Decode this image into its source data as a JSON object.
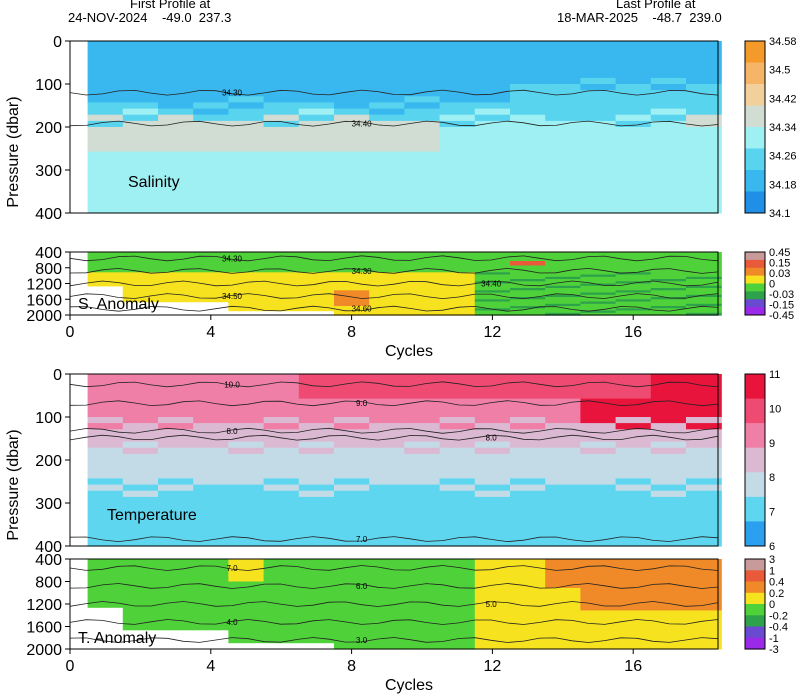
{
  "header": {
    "first_label": "First Profile at",
    "first_value": "24-NOV-2024    -49.0  237.3",
    "last_label": "Last Profile at",
    "last_value": "18-MAR-2025    -48.7  239.0"
  },
  "chart_data": [
    {
      "type": "heatmap",
      "title": "Salinity",
      "ylabel": "Pressure (dbar)",
      "ylim": [
        400,
        0
      ],
      "yticks": [
        "0",
        "100",
        "200",
        "300",
        "400"
      ],
      "xlim": [
        0,
        18.5
      ],
      "colorbar": [
        "34.58",
        "34.5",
        "34.42",
        "34.34",
        "34.26",
        "34.18",
        "34.1"
      ],
      "colors": [
        "#f49a2a",
        "#f6b466",
        "#f3cf9c",
        "#d1ddd2",
        "#9ff0f3",
        "#58d4ef",
        "#38b8ee",
        "#1f8fe8"
      ],
      "contours": [
        {
          "label": "34.30",
          "value": 34.3
        },
        {
          "label": "34.40",
          "value": 34.4
        }
      ]
    },
    {
      "type": "heatmap",
      "title": "S. Anomaly",
      "ylim": [
        2000,
        400
      ],
      "yticks": [
        "400",
        "800",
        "1200",
        "1600",
        "2000"
      ],
      "xlabel": "Cycles",
      "xticks": [
        "0",
        "4",
        "8",
        "12",
        "16"
      ],
      "colorbar": [
        "0.45",
        "0.15",
        "0.03",
        "0",
        "-0.03",
        "-0.15",
        "-0.45"
      ],
      "colors": [
        "#c89a9a",
        "#e85a3a",
        "#f08a28",
        "#f7e21f",
        "#4fd13a",
        "#2ea24a",
        "#6a4ad0",
        "#9a2ae8"
      ],
      "contours": [
        {
          "label": "34.30",
          "value": 34.3
        },
        {
          "label": "34.30",
          "value": 34.3
        },
        {
          "label": "34.40",
          "value": 34.4
        },
        {
          "label": "34.50",
          "value": 34.5
        },
        {
          "label": "34.60",
          "value": 34.6
        }
      ]
    },
    {
      "type": "heatmap",
      "title": "Temperature",
      "ylabel": "Pressure (dbar)",
      "ylim": [
        400,
        0
      ],
      "yticks": [
        "0",
        "100",
        "200",
        "300",
        "400"
      ],
      "xlim": [
        0,
        18.5
      ],
      "colorbar": [
        "11",
        "10",
        "9",
        "8",
        "7",
        "6"
      ],
      "colors": [
        "#e8143c",
        "#ef4a72",
        "#f07fa8",
        "#dcb9d2",
        "#c2dbe6",
        "#5fd6f0",
        "#2aa0ee"
      ],
      "contours": [
        {
          "label": "10.0",
          "value": 10.0
        },
        {
          "label": "9.0",
          "value": 9.0
        },
        {
          "label": "8.0",
          "value": 8.0
        },
        {
          "label": "8.0",
          "value": 8.0
        },
        {
          "label": "7.0",
          "value": 7.0
        }
      ]
    },
    {
      "type": "heatmap",
      "title": "T. Anomaly",
      "ylim": [
        2000,
        400
      ],
      "yticks": [
        "400",
        "800",
        "1200",
        "1600",
        "2000"
      ],
      "xlabel": "Cycles",
      "xticks": [
        "0",
        "4",
        "8",
        "12",
        "16"
      ],
      "colorbar": [
        "3",
        "1",
        "0.4",
        "0.2",
        "0",
        "-0.2",
        "-0.4",
        "-1",
        "-3"
      ],
      "colors": [
        "#c89a9a",
        "#e85a3a",
        "#f08a28",
        "#f7e21f",
        "#4fd13a",
        "#2ea24a",
        "#6a4ad0",
        "#9a2ae8"
      ],
      "contours": [
        {
          "label": "7.0",
          "value": 7.0
        },
        {
          "label": "6.0",
          "value": 6.0
        },
        {
          "label": "5.0",
          "value": 5.0
        },
        {
          "label": "4.0",
          "value": 4.0
        },
        {
          "label": "3.0",
          "value": 3.0
        }
      ]
    }
  ]
}
